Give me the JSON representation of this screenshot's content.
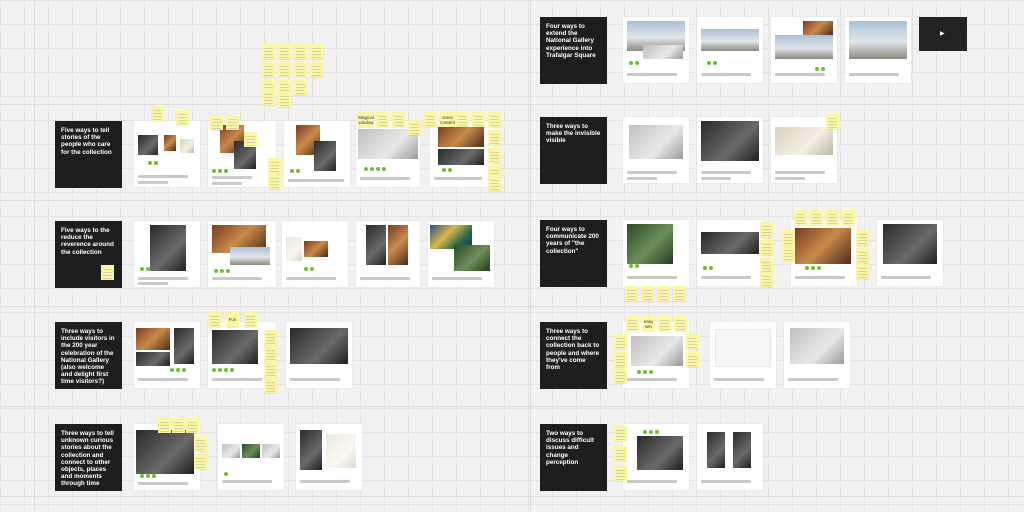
{
  "board": {
    "sections": [
      {
        "id": "s1",
        "title": "Five ways to tell stories of the people who care for the collection"
      },
      {
        "id": "s2",
        "title": "Five ways to the reduce the reverence around the collection"
      },
      {
        "id": "s3",
        "title": "Three ways to include visitors in the 200 year celebration of the National Gallery (also welcome and delight first time visitors?)"
      },
      {
        "id": "s4",
        "title": "Three ways to tell unknown curious stories about the collection and connect to other objects, places and moments through time"
      },
      {
        "id": "s5",
        "title": "Four ways to extend the National Gallery experience into Trafalgar Square"
      },
      {
        "id": "s6",
        "title": "Three ways to make the invisible visible"
      },
      {
        "id": "s7",
        "title": "Four ways to communicate 200 years of \"the collection\""
      },
      {
        "id": "s8",
        "title": "Three ways to connect the collection back to people and where they've come from"
      },
      {
        "id": "s9",
        "title": "Two ways to discuss difficult issues and change perception"
      }
    ],
    "sticky_labels": {
      "magical_window": "Magical window",
      "docs_content": "Docs content",
      "fun": "Fun",
      "easy_win": "easy win"
    },
    "colors": {
      "sticky": "#fbf6a6",
      "vote_dot": "#6cbf2e",
      "title_card": "#1e1e1e",
      "canvas": "#f1f1f1"
    }
  }
}
